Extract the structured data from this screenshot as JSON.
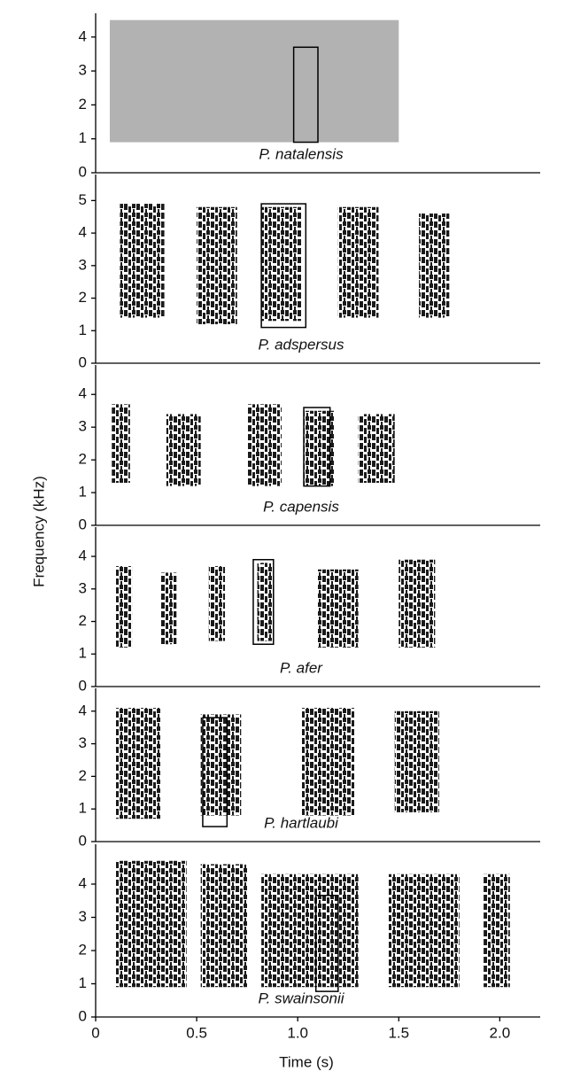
{
  "chart_data": {
    "type": "spectrogram",
    "xlabel": "Time (s)",
    "ylabel": "Frequency (kHz)",
    "xlim": [
      0,
      2.2
    ],
    "xticks": [
      0,
      0.5,
      {
        "value": 1,
        "label": "1.0"
      },
      1.5,
      {
        "value": 2,
        "label": "2.0"
      }
    ],
    "panels": [
      {
        "label": "P. natalensis",
        "ylim": [
          0,
          4.7
        ],
        "yticks": [
          0,
          1,
          2,
          3,
          4
        ],
        "color": "#555555",
        "calls": [
          {
            "start": 0.07,
            "end": 1.5,
            "low": 0.9,
            "high": 4.5
          }
        ],
        "box": {
          "start": 0.98,
          "end": 1.1,
          "low": 0.9,
          "high": 3.7
        }
      },
      {
        "label": "P. adspersus",
        "ylim": [
          0,
          5.8
        ],
        "yticks": [
          0,
          1,
          2,
          3,
          4,
          5
        ],
        "color": "#000000",
        "calls": [
          {
            "start": 0.12,
            "end": 0.34,
            "low": 1.4,
            "high": 4.9
          },
          {
            "start": 0.5,
            "end": 0.7,
            "low": 1.2,
            "high": 4.8
          },
          {
            "start": 0.82,
            "end": 1.02,
            "low": 1.3,
            "high": 4.8
          },
          {
            "start": 1.2,
            "end": 1.4,
            "low": 1.4,
            "high": 4.8
          },
          {
            "start": 1.6,
            "end": 1.75,
            "low": 1.4,
            "high": 4.6
          }
        ],
        "box": {
          "start": 0.82,
          "end": 1.04,
          "low": 1.1,
          "high": 4.9
        }
      },
      {
        "label": "P. capensis",
        "ylim": [
          0,
          4.9
        ],
        "yticks": [
          0,
          1,
          2,
          3,
          4
        ],
        "color": "#000000",
        "calls": [
          {
            "start": 0.08,
            "end": 0.17,
            "low": 1.3,
            "high": 3.7
          },
          {
            "start": 0.35,
            "end": 0.52,
            "low": 1.2,
            "high": 3.4
          },
          {
            "start": 0.75,
            "end": 0.92,
            "low": 1.2,
            "high": 3.7
          },
          {
            "start": 1.03,
            "end": 1.18,
            "low": 1.2,
            "high": 3.5
          },
          {
            "start": 1.3,
            "end": 1.48,
            "low": 1.3,
            "high": 3.4
          }
        ],
        "box": {
          "start": 1.03,
          "end": 1.16,
          "low": 1.2,
          "high": 3.6
        }
      },
      {
        "label": "P. afer",
        "ylim": [
          0,
          4.9
        ],
        "yticks": [
          0,
          1,
          2,
          3,
          4
        ],
        "color": "#000000",
        "calls": [
          {
            "start": 0.1,
            "end": 0.18,
            "low": 1.2,
            "high": 3.7
          },
          {
            "start": 0.32,
            "end": 0.4,
            "low": 1.3,
            "high": 3.5
          },
          {
            "start": 0.56,
            "end": 0.64,
            "low": 1.4,
            "high": 3.7
          },
          {
            "start": 0.8,
            "end": 0.88,
            "low": 1.4,
            "high": 3.8
          },
          {
            "start": 1.1,
            "end": 1.3,
            "low": 1.2,
            "high": 3.6
          },
          {
            "start": 1.5,
            "end": 1.68,
            "low": 1.2,
            "high": 3.9
          }
        ],
        "box": {
          "start": 0.78,
          "end": 0.88,
          "low": 1.3,
          "high": 3.9
        }
      },
      {
        "label": "P. hartlaubi",
        "ylim": [
          0,
          4.7
        ],
        "yticks": [
          0,
          1,
          2,
          3,
          4
        ],
        "color": "#000000",
        "calls": [
          {
            "start": 0.1,
            "end": 0.32,
            "low": 0.7,
            "high": 4.1
          },
          {
            "start": 0.52,
            "end": 0.72,
            "low": 0.8,
            "high": 3.9
          },
          {
            "start": 1.02,
            "end": 1.28,
            "low": 0.8,
            "high": 4.1
          },
          {
            "start": 1.48,
            "end": 1.7,
            "low": 0.9,
            "high": 4.0
          }
        ],
        "box": {
          "start": 0.53,
          "end": 0.65,
          "low": 0.46,
          "high": 3.8
        }
      },
      {
        "label": "P. swainsonii",
        "ylim": [
          0,
          5.2
        ],
        "yticks": [
          0,
          1,
          2,
          3,
          4
        ],
        "color": "#000000",
        "calls": [
          {
            "start": 0.1,
            "end": 0.45,
            "low": 0.9,
            "high": 4.7
          },
          {
            "start": 0.52,
            "end": 0.75,
            "low": 0.9,
            "high": 4.6
          },
          {
            "start": 0.82,
            "end": 1.3,
            "low": 0.9,
            "high": 4.3
          },
          {
            "start": 1.45,
            "end": 1.8,
            "low": 0.9,
            "high": 4.3
          },
          {
            "start": 1.92,
            "end": 2.05,
            "low": 0.9,
            "high": 4.3
          }
        ],
        "box": {
          "start": 1.09,
          "end": 1.2,
          "low": 0.77,
          "high": 3.66
        }
      }
    ]
  }
}
